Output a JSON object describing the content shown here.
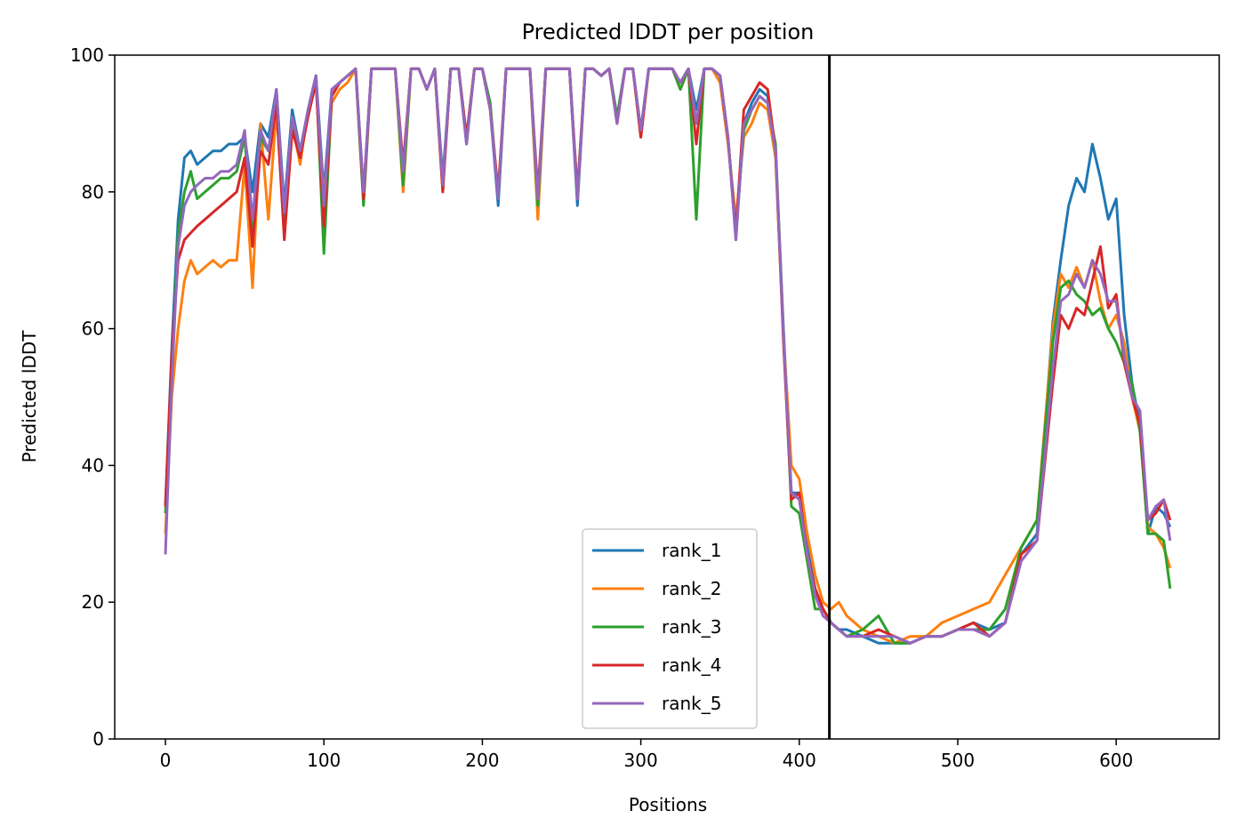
{
  "chart_data": {
    "type": "line",
    "title": "Predicted lDDT per position",
    "xlabel": "Positions",
    "ylabel": "Predicted lDDT",
    "xlim": [
      -32,
      665
    ],
    "ylim": [
      0,
      100
    ],
    "xticks": [
      0,
      100,
      200,
      300,
      400,
      500,
      600
    ],
    "yticks": [
      0,
      20,
      40,
      60,
      80,
      100
    ],
    "grid": false,
    "legend_position": "lower-center",
    "vline": {
      "x": 419,
      "color": "#000000"
    },
    "series_colors": [
      "#1f77b4",
      "#ff7f0e",
      "#2ca02c",
      "#d62728",
      "#9467bd"
    ],
    "x": [
      0,
      4,
      8,
      12,
      16,
      20,
      25,
      30,
      35,
      40,
      45,
      50,
      55,
      60,
      65,
      70,
      75,
      80,
      85,
      90,
      95,
      100,
      105,
      110,
      115,
      120,
      125,
      130,
      135,
      140,
      145,
      150,
      155,
      160,
      165,
      170,
      175,
      180,
      185,
      190,
      195,
      200,
      205,
      210,
      215,
      220,
      225,
      230,
      235,
      240,
      245,
      250,
      255,
      260,
      265,
      270,
      275,
      280,
      285,
      290,
      295,
      300,
      305,
      310,
      315,
      320,
      325,
      330,
      335,
      340,
      345,
      350,
      355,
      360,
      365,
      370,
      375,
      380,
      385,
      390,
      395,
      400,
      405,
      410,
      415,
      420,
      425,
      430,
      440,
      450,
      460,
      470,
      480,
      490,
      500,
      510,
      520,
      530,
      540,
      550,
      560,
      565,
      570,
      575,
      580,
      585,
      590,
      595,
      600,
      605,
      610,
      615,
      620,
      625,
      630,
      634
    ],
    "series": [
      {
        "name": "rank_1",
        "values": [
          34,
          57,
          76,
          85,
          86,
          84,
          85,
          86,
          86,
          87,
          87,
          88,
          80,
          90,
          88,
          95,
          78,
          92,
          86,
          92,
          97,
          80,
          95,
          96,
          97,
          98,
          80,
          98,
          98,
          98,
          98,
          83,
          98,
          98,
          95,
          98,
          82,
          98,
          98,
          87,
          98,
          98,
          92,
          78,
          98,
          98,
          98,
          98,
          77,
          98,
          98,
          98,
          98,
          78,
          98,
          98,
          97,
          98,
          91,
          98,
          98,
          89,
          98,
          98,
          98,
          98,
          96,
          98,
          92,
          98,
          98,
          97,
          88,
          73,
          90,
          93,
          95,
          94,
          86,
          60,
          36,
          36,
          28,
          22,
          19,
          17,
          16,
          16,
          15,
          14,
          14,
          14,
          15,
          15,
          16,
          17,
          16,
          17,
          27,
          30,
          61,
          70,
          78,
          82,
          80,
          87,
          82,
          76,
          79,
          62,
          52,
          46,
          30,
          34,
          33,
          31
        ]
      },
      {
        "name": "rank_2",
        "values": [
          30,
          50,
          60,
          67,
          70,
          68,
          69,
          70,
          69,
          70,
          70,
          84,
          66,
          90,
          76,
          92,
          75,
          90,
          84,
          92,
          96,
          79,
          93,
          95,
          96,
          98,
          79,
          98,
          98,
          98,
          98,
          80,
          98,
          98,
          95,
          98,
          80,
          98,
          98,
          88,
          98,
          98,
          92,
          80,
          98,
          98,
          98,
          98,
          76,
          98,
          98,
          98,
          98,
          79,
          98,
          98,
          97,
          98,
          90,
          98,
          98,
          88,
          98,
          98,
          98,
          98,
          95,
          98,
          90,
          98,
          98,
          96,
          87,
          76,
          88,
          90,
          93,
          92,
          85,
          59,
          40,
          38,
          30,
          24,
          20,
          19,
          20,
          18,
          16,
          15,
          14,
          15,
          15,
          17,
          18,
          19,
          20,
          24,
          28,
          32,
          60,
          68,
          66,
          69,
          66,
          70,
          64,
          60,
          62,
          58,
          50,
          45,
          31,
          30,
          28,
          25
        ]
      },
      {
        "name": "rank_3",
        "values": [
          33,
          53,
          74,
          80,
          83,
          79,
          80,
          81,
          82,
          82,
          83,
          88,
          73,
          88,
          86,
          94,
          75,
          91,
          85,
          92,
          97,
          71,
          94,
          96,
          97,
          98,
          78,
          98,
          98,
          98,
          98,
          81,
          98,
          98,
          95,
          98,
          81,
          98,
          98,
          88,
          98,
          98,
          93,
          79,
          98,
          98,
          98,
          98,
          78,
          98,
          98,
          98,
          98,
          80,
          98,
          98,
          97,
          98,
          91,
          98,
          98,
          89,
          98,
          98,
          98,
          98,
          95,
          98,
          76,
          98,
          98,
          97,
          88,
          74,
          89,
          92,
          94,
          93,
          87,
          59,
          34,
          33,
          26,
          19,
          19,
          17,
          16,
          15,
          16,
          18,
          14,
          14,
          15,
          15,
          16,
          16,
          16,
          19,
          28,
          32,
          58,
          66,
          67,
          65,
          64,
          62,
          63,
          60,
          58,
          55,
          52,
          45,
          30,
          30,
          29,
          22
        ]
      },
      {
        "name": "rank_4",
        "values": [
          34,
          56,
          70,
          73,
          74,
          75,
          76,
          77,
          78,
          79,
          80,
          85,
          72,
          86,
          84,
          93,
          73,
          89,
          85,
          91,
          96,
          75,
          94,
          96,
          97,
          98,
          79,
          98,
          98,
          98,
          98,
          84,
          98,
          98,
          95,
          98,
          80,
          98,
          98,
          88,
          98,
          98,
          92,
          80,
          98,
          98,
          98,
          98,
          80,
          98,
          98,
          98,
          98,
          80,
          98,
          98,
          97,
          98,
          90,
          98,
          98,
          88,
          98,
          98,
          98,
          98,
          96,
          98,
          87,
          98,
          98,
          97,
          88,
          74,
          92,
          94,
          96,
          95,
          86,
          58,
          35,
          36,
          27,
          22,
          19,
          17,
          16,
          15,
          15,
          16,
          15,
          14,
          15,
          15,
          16,
          17,
          15,
          17,
          27,
          29,
          52,
          62,
          60,
          63,
          62,
          67,
          72,
          63,
          65,
          55,
          50,
          46,
          32,
          33,
          35,
          32
        ]
      },
      {
        "name": "rank_5",
        "values": [
          27,
          52,
          72,
          78,
          80,
          81,
          82,
          82,
          83,
          83,
          84,
          89,
          76,
          89,
          86,
          95,
          77,
          91,
          86,
          92,
          97,
          78,
          95,
          96,
          97,
          98,
          80,
          98,
          98,
          98,
          98,
          83,
          98,
          98,
          95,
          98,
          81,
          98,
          98,
          87,
          98,
          98,
          92,
          79,
          98,
          98,
          98,
          98,
          79,
          98,
          98,
          98,
          98,
          79,
          98,
          98,
          97,
          98,
          90,
          98,
          98,
          89,
          98,
          98,
          98,
          98,
          96,
          98,
          90,
          98,
          98,
          97,
          88,
          73,
          90,
          92,
          94,
          93,
          86,
          59,
          36,
          35,
          27,
          21,
          18,
          17,
          16,
          15,
          15,
          15,
          15,
          14,
          15,
          15,
          16,
          16,
          15,
          17,
          26,
          29,
          54,
          64,
          65,
          68,
          66,
          70,
          68,
          64,
          64,
          56,
          50,
          48,
          32,
          34,
          35,
          29
        ]
      }
    ]
  }
}
